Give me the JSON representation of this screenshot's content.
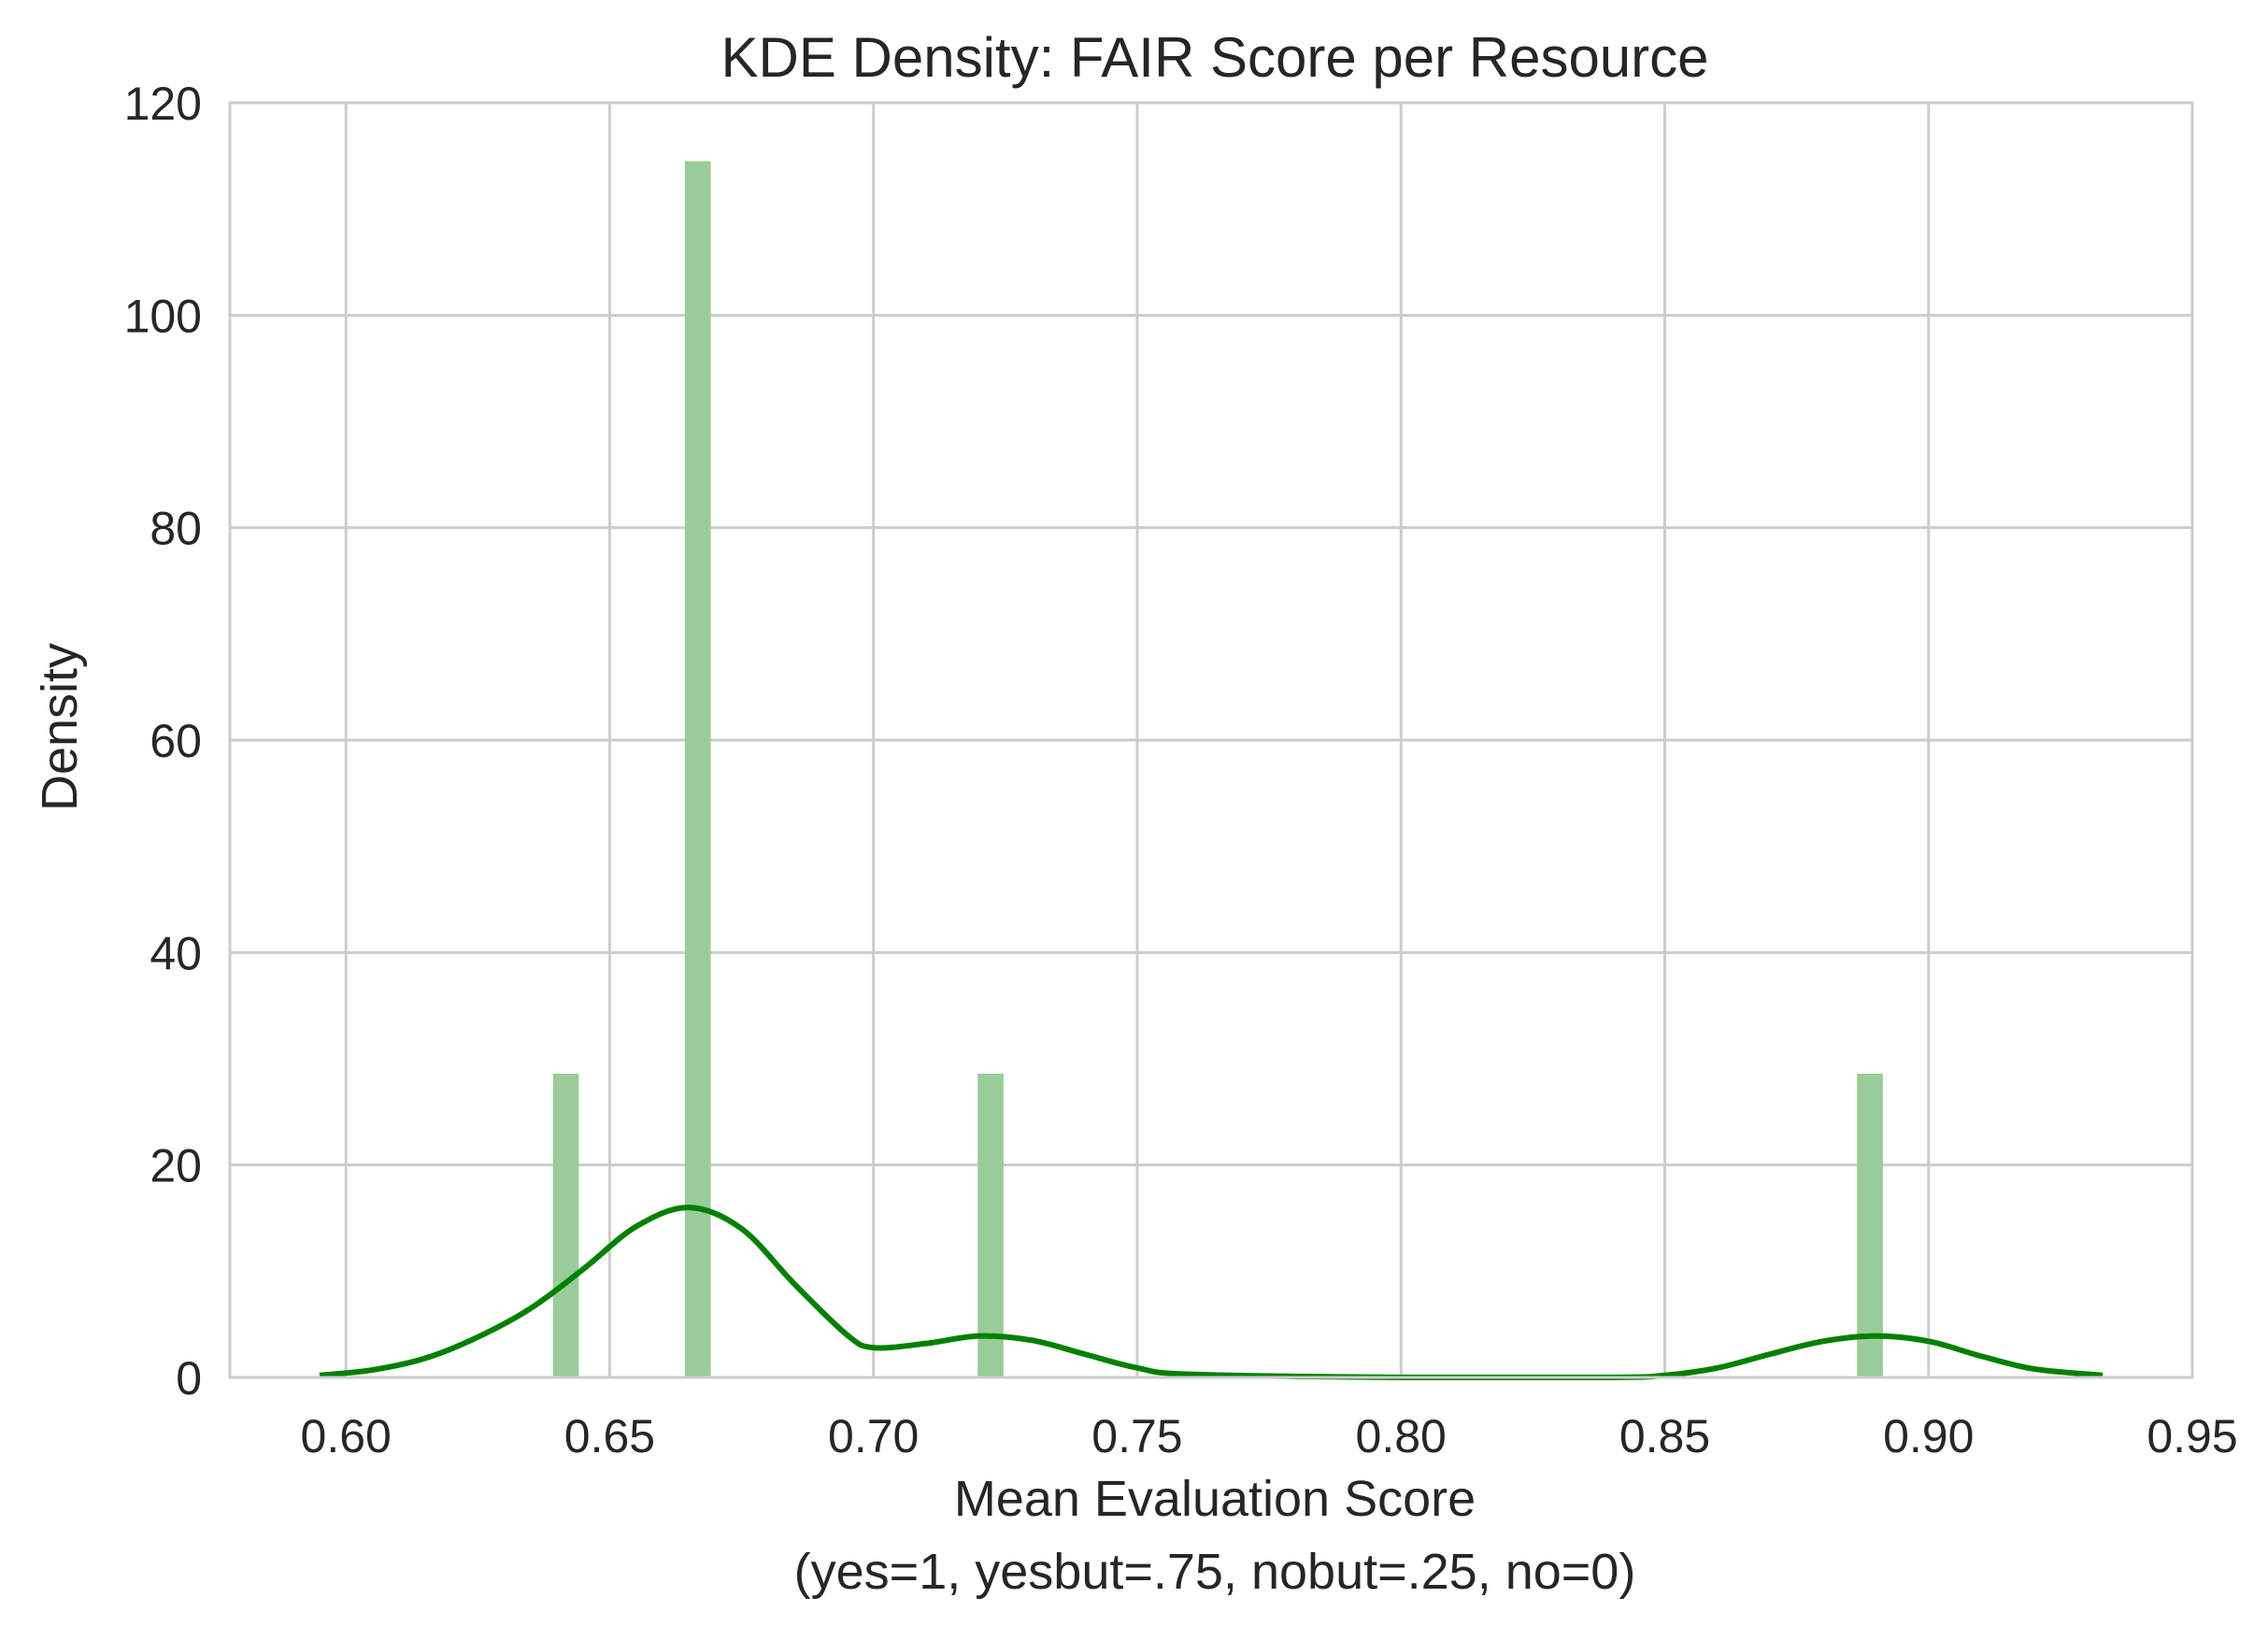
{
  "chart_data": {
    "type": "bar",
    "title": "KDE Density: FAIR Score per Resource",
    "xlabel": "Mean Evaluation Score",
    "xlabel_line2": "(yes=1, yesbut=.75, nobut=.25, no=0)",
    "ylabel": "Density",
    "xlim": [
      0.578,
      0.95
    ],
    "ylim": [
      0,
      120
    ],
    "x_ticks": [
      "0.60",
      "0.65",
      "0.70",
      "0.75",
      "0.80",
      "0.85",
      "0.90",
      "0.95"
    ],
    "y_ticks": [
      "0",
      "20",
      "40",
      "60",
      "80",
      "100",
      "120"
    ],
    "grid": true,
    "colors": {
      "bar": "#99cc99",
      "kde": "#008000",
      "grid": "#cccccc",
      "spine": "#cccccc"
    },
    "bars": [
      {
        "x": 0.6417,
        "height": 28.6
      },
      {
        "x": 0.6667,
        "height": 114.5
      },
      {
        "x": 0.7222,
        "height": 28.6
      },
      {
        "x": 0.8889,
        "height": 28.6
      }
    ],
    "bar_width": 0.0049,
    "kde": {
      "name": "KDE",
      "x": [
        0.595,
        0.605,
        0.615,
        0.625,
        0.635,
        0.645,
        0.655,
        0.665,
        0.675,
        0.685,
        0.695,
        0.7,
        0.71,
        0.72,
        0.73,
        0.74,
        0.75,
        0.76,
        0.8,
        0.84,
        0.85,
        0.86,
        0.87,
        0.88,
        0.89,
        0.9,
        0.91,
        0.92,
        0.933
      ],
      "y": [
        0.2,
        0.7,
        1.8,
        3.8,
        6.5,
        10.2,
        14.2,
        16.0,
        14.0,
        8.8,
        4.0,
        2.8,
        3.2,
        3.9,
        3.5,
        2.2,
        0.9,
        0.3,
        0.0,
        0.0,
        0.2,
        0.9,
        2.2,
        3.4,
        3.9,
        3.4,
        2.0,
        0.8,
        0.2
      ]
    }
  }
}
